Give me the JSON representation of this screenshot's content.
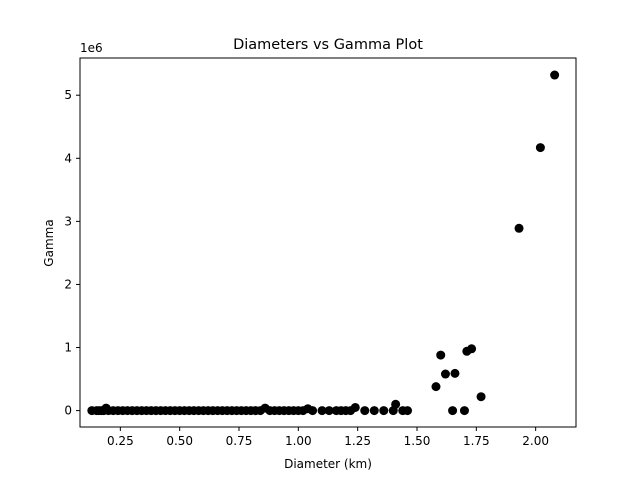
{
  "chart_data": {
    "type": "scatter",
    "title": "Diameters vs Gamma Plot",
    "xlabel": "Diameter (km)",
    "ylabel": "Gamma",
    "y_multiplier": "1e6",
    "xlim": [
      0.08,
      2.17
    ],
    "ylim": [
      -260000,
      5590000
    ],
    "x_ticks": [
      0.25,
      0.5,
      0.75,
      1.0,
      1.25,
      1.5,
      1.75,
      2.0
    ],
    "x_tick_labels": [
      "0.25",
      "0.50",
      "0.75",
      "1.00",
      "1.25",
      "1.50",
      "1.75",
      "2.00"
    ],
    "y_ticks": [
      0,
      1000000,
      2000000,
      3000000,
      4000000,
      5000000
    ],
    "y_tick_labels": [
      "0",
      "1",
      "2",
      "3",
      "4",
      "5"
    ],
    "grid": false,
    "marker_color": "#000000",
    "series": [
      {
        "points": [
          [
            0.13,
            0
          ],
          [
            0.15,
            0
          ],
          [
            0.16,
            0
          ],
          [
            0.17,
            0
          ],
          [
            0.18,
            0
          ],
          [
            0.19,
            40000
          ],
          [
            0.2,
            0
          ],
          [
            0.22,
            0
          ],
          [
            0.24,
            0
          ],
          [
            0.26,
            0
          ],
          [
            0.28,
            0
          ],
          [
            0.3,
            0
          ],
          [
            0.32,
            0
          ],
          [
            0.34,
            0
          ],
          [
            0.36,
            0
          ],
          [
            0.38,
            0
          ],
          [
            0.4,
            0
          ],
          [
            0.42,
            0
          ],
          [
            0.44,
            0
          ],
          [
            0.46,
            0
          ],
          [
            0.48,
            0
          ],
          [
            0.5,
            0
          ],
          [
            0.52,
            0
          ],
          [
            0.54,
            0
          ],
          [
            0.56,
            0
          ],
          [
            0.58,
            0
          ],
          [
            0.6,
            0
          ],
          [
            0.62,
            0
          ],
          [
            0.64,
            0
          ],
          [
            0.66,
            0
          ],
          [
            0.68,
            0
          ],
          [
            0.7,
            0
          ],
          [
            0.72,
            0
          ],
          [
            0.74,
            0
          ],
          [
            0.76,
            0
          ],
          [
            0.78,
            0
          ],
          [
            0.8,
            0
          ],
          [
            0.82,
            0
          ],
          [
            0.84,
            0
          ],
          [
            0.86,
            40000
          ],
          [
            0.88,
            0
          ],
          [
            0.9,
            0
          ],
          [
            0.92,
            0
          ],
          [
            0.94,
            0
          ],
          [
            0.96,
            0
          ],
          [
            0.98,
            0
          ],
          [
            1.0,
            0
          ],
          [
            1.02,
            0
          ],
          [
            1.04,
            30000
          ],
          [
            1.06,
            0
          ],
          [
            1.1,
            0
          ],
          [
            1.13,
            0
          ],
          [
            1.16,
            0
          ],
          [
            1.18,
            0
          ],
          [
            1.2,
            0
          ],
          [
            1.22,
            0
          ],
          [
            1.24,
            50000
          ],
          [
            1.28,
            0
          ],
          [
            1.32,
            0
          ],
          [
            1.36,
            0
          ],
          [
            1.4,
            0
          ],
          [
            1.41,
            100000
          ],
          [
            1.44,
            0
          ],
          [
            1.46,
            0
          ],
          [
            1.58,
            380000
          ],
          [
            1.6,
            880000
          ],
          [
            1.62,
            580000
          ],
          [
            1.65,
            0
          ],
          [
            1.66,
            590000
          ],
          [
            1.7,
            0
          ],
          [
            1.71,
            940000
          ],
          [
            1.73,
            980000
          ],
          [
            1.77,
            220000
          ],
          [
            1.93,
            2890000
          ],
          [
            2.02,
            4170000
          ],
          [
            2.08,
            5320000
          ]
        ]
      }
    ]
  }
}
